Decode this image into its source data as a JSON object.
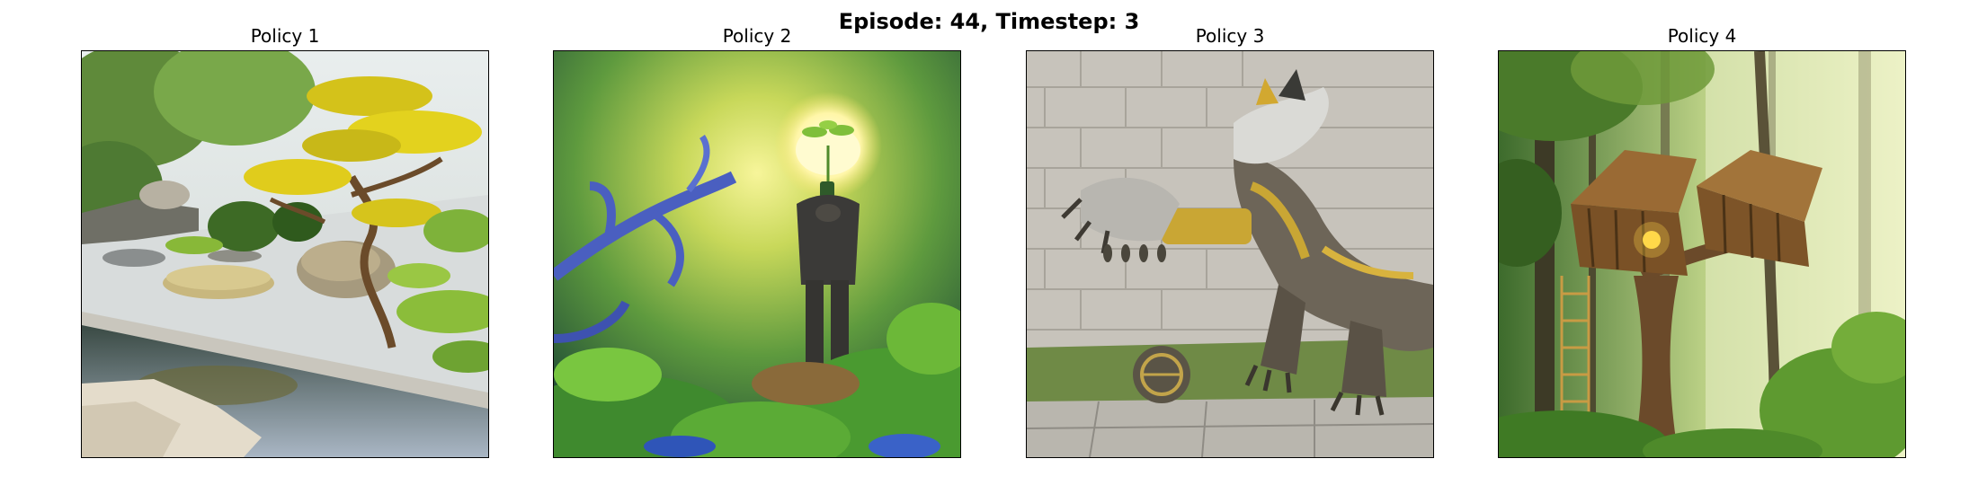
{
  "figure": {
    "suptitle": "Episode: 44, Timestep: 3"
  },
  "panels": [
    {
      "title": "Policy 1",
      "image": "zen-garden-with-bonsai-and-pond"
    },
    {
      "title": "Policy 2",
      "image": "figure-with-glowing-plant-head-in-jungle"
    },
    {
      "title": "Policy 3",
      "image": "steampunk-mechanical-dragon-by-stone-wall"
    },
    {
      "title": "Policy 4",
      "image": "wooden-treehouse-in-misty-forest"
    }
  ]
}
